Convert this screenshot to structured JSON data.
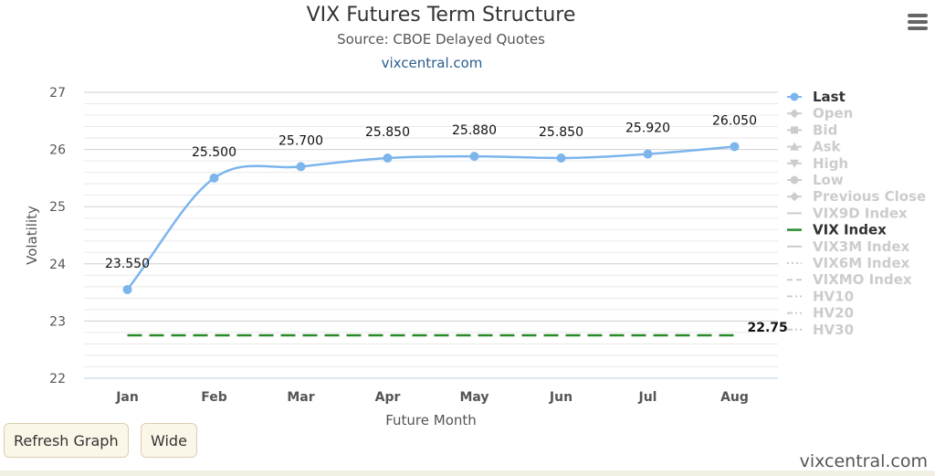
{
  "header": {
    "title": "VIX Futures Term Structure",
    "subtitle": "Source: CBOE Delayed Quotes",
    "link": "vixcentral.com"
  },
  "menu_icon": "hamburger-menu-icon",
  "buttons": {
    "refresh": "Refresh Graph",
    "wide": "Wide"
  },
  "footer": {
    "brand": "vixcentral.com"
  },
  "colors": {
    "last": "#7cb5ec",
    "vix": "#2a8a2a",
    "legend_inactive": "#cccccc",
    "legend_active": "#333333"
  },
  "chart_data": {
    "type": "line",
    "title": "VIX Futures Term Structure",
    "subtitle": "Source: CBOE Delayed Quotes",
    "xlabel": "Future Month",
    "ylabel": "Volatility",
    "categories": [
      "Jan",
      "Feb",
      "Mar",
      "Apr",
      "May",
      "Jun",
      "Jul",
      "Aug"
    ],
    "ylim": [
      22,
      27
    ],
    "yticks": [
      22,
      23,
      24,
      25,
      26,
      27
    ],
    "grid": true,
    "legend_position": "right",
    "series": [
      {
        "name": "Last",
        "values": [
          23.55,
          25.5,
          25.7,
          25.85,
          25.88,
          25.85,
          25.92,
          26.05
        ],
        "labels": [
          "23.550",
          "25.500",
          "25.700",
          "25.850",
          "25.880",
          "25.850",
          "25.920",
          "26.050"
        ],
        "style": "solid",
        "active": true
      },
      {
        "name": "VIX Index",
        "value": 22.75,
        "label": "22.75",
        "style": "dashed",
        "active": true
      }
    ],
    "legend": [
      {
        "name": "Last",
        "active": true,
        "marker": "circle"
      },
      {
        "name": "Open",
        "active": false,
        "marker": "diamond"
      },
      {
        "name": "Bid",
        "active": false,
        "marker": "square"
      },
      {
        "name": "Ask",
        "active": false,
        "marker": "triangle"
      },
      {
        "name": "High",
        "active": false,
        "marker": "triangle-down"
      },
      {
        "name": "Low",
        "active": false,
        "marker": "circle"
      },
      {
        "name": "Previous Close",
        "active": false,
        "marker": "diamond"
      },
      {
        "name": "VIX9D Index",
        "active": false,
        "marker": "line"
      },
      {
        "name": "VIX Index",
        "active": true,
        "marker": "line"
      },
      {
        "name": "VIX3M Index",
        "active": false,
        "marker": "line"
      },
      {
        "name": "VIX6M Index",
        "active": false,
        "marker": "dotted"
      },
      {
        "name": "VIXMO Index",
        "active": false,
        "marker": "dashed"
      },
      {
        "name": "HV10",
        "active": false,
        "marker": "dashdot"
      },
      {
        "name": "HV20",
        "active": false,
        "marker": "dashdot"
      },
      {
        "name": "HV30",
        "active": false,
        "marker": "dashdot"
      }
    ]
  }
}
